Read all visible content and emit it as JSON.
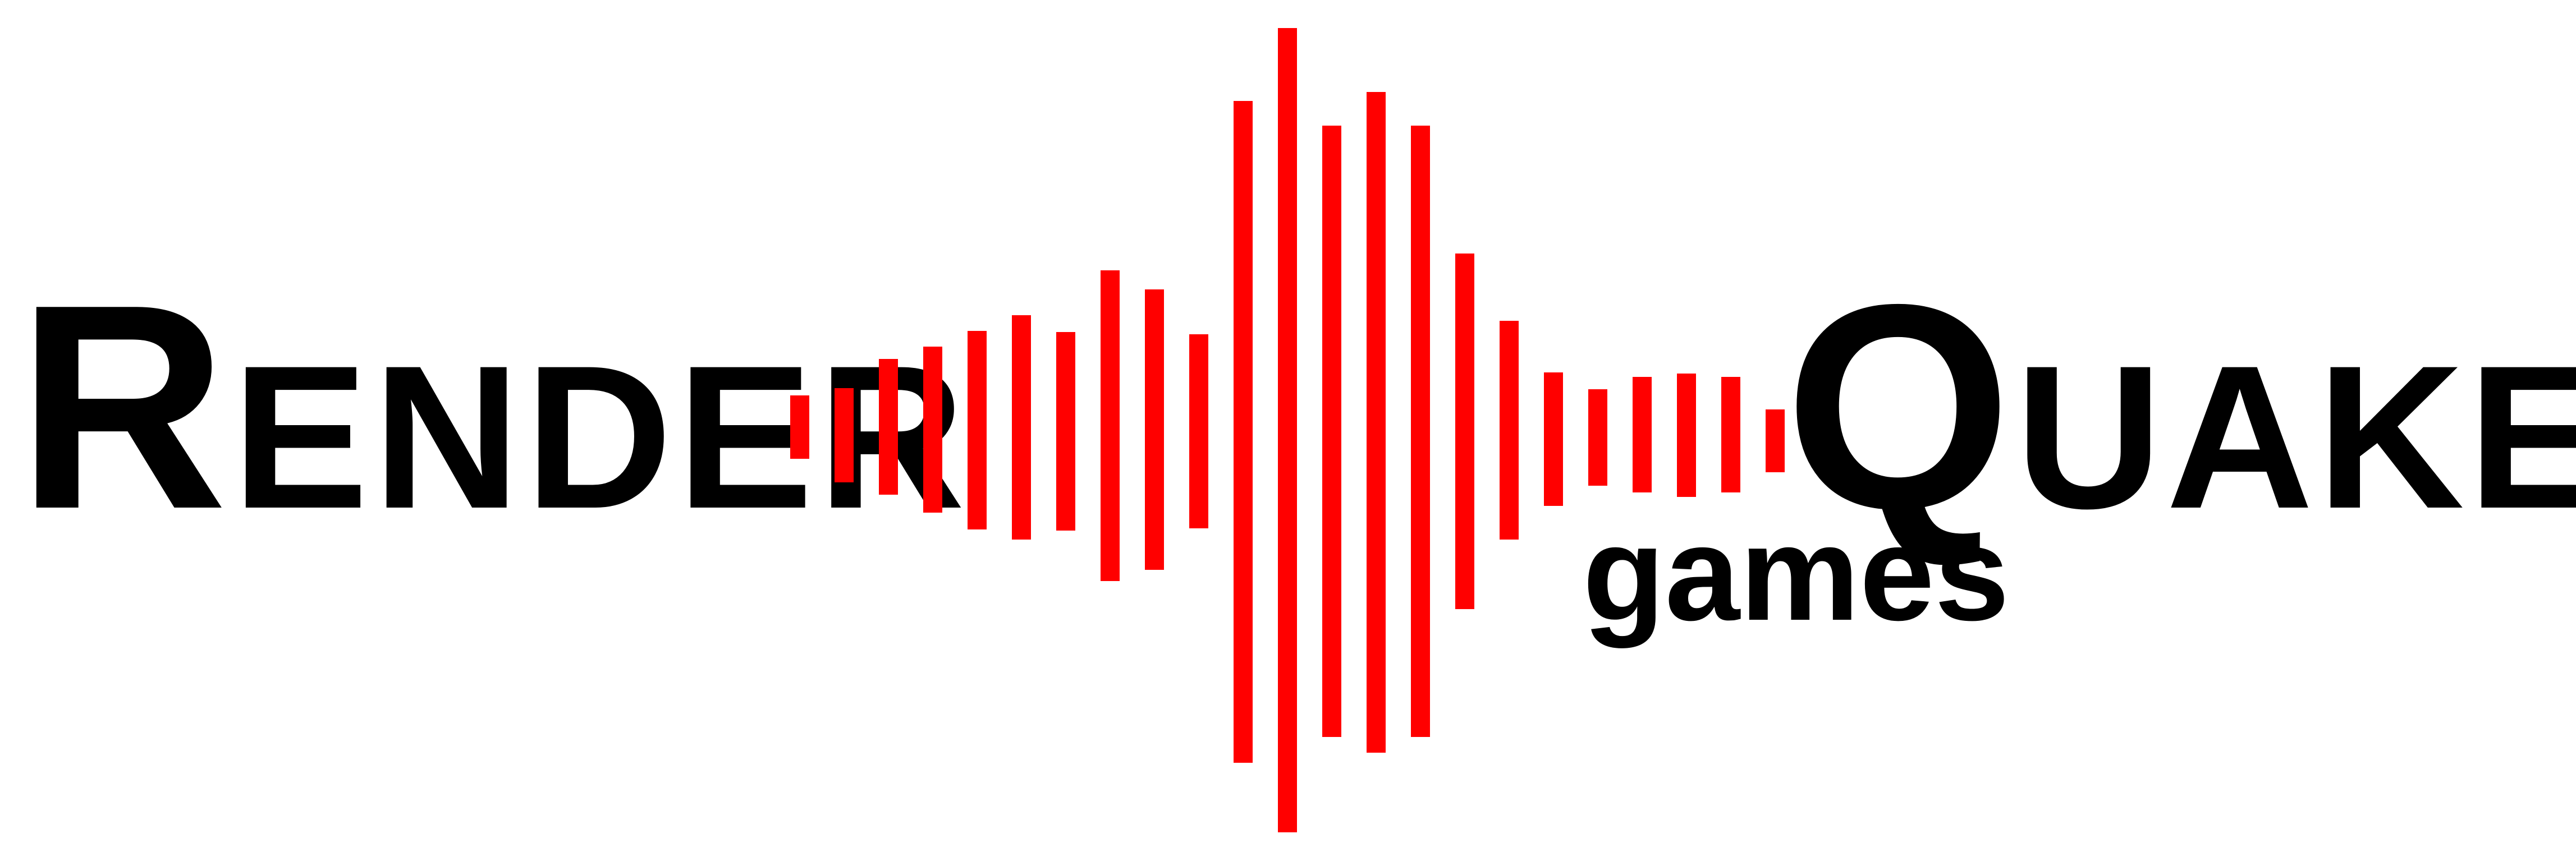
{
  "logo": {
    "word_left": "Render",
    "word_right": "Quake",
    "tagline": "games",
    "colors": {
      "text": "#000000",
      "waveform": "#ff0000",
      "background": "#ffffff"
    }
  }
}
